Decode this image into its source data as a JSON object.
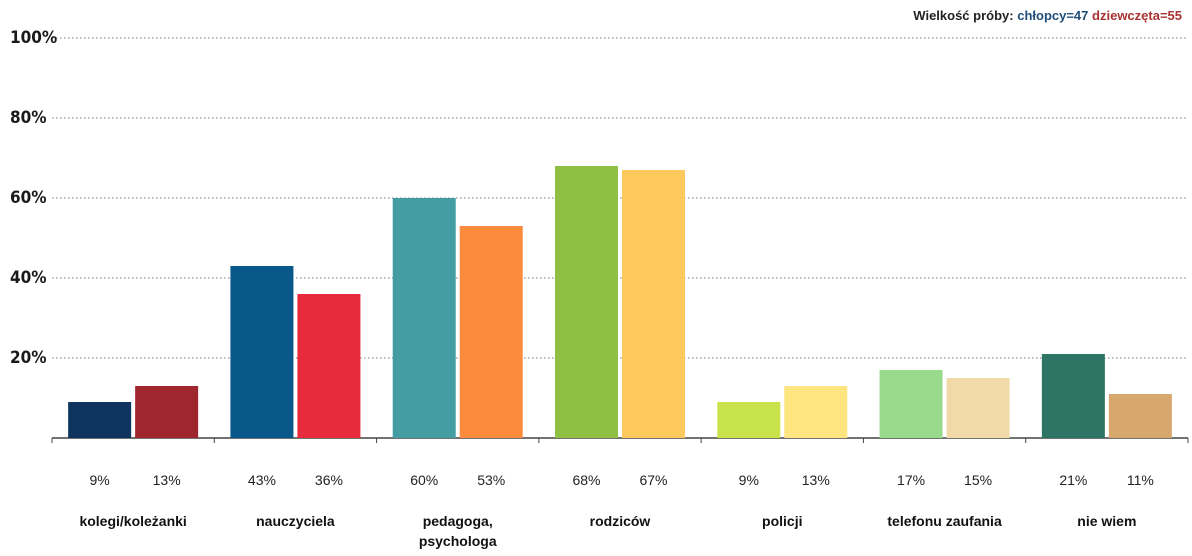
{
  "sample_size": {
    "label": "Wielkość próby:",
    "boys": "chłopcy=47",
    "girls": "dziewczęta=55"
  },
  "chart_data": {
    "type": "bar",
    "ylim": [
      0,
      100
    ],
    "y_ticks": [
      "20%",
      "40%",
      "60%",
      "80%",
      "100%"
    ],
    "grid": true,
    "categories": [
      [
        "kolegi/koleżanki"
      ],
      [
        "nauczyciela"
      ],
      [
        "pedagoga,",
        "psychologa"
      ],
      [
        "rodziców"
      ],
      [
        "policji"
      ],
      [
        "telefonu zaufania"
      ],
      [
        "nie wiem"
      ]
    ],
    "series": [
      {
        "values": [
          9,
          43,
          60,
          68,
          9,
          17,
          21
        ],
        "labels": [
          "9%",
          "43%",
          "60%",
          "68%",
          "9%",
          "17%",
          "21%"
        ],
        "colors": [
          "#0f3460",
          "#08588a",
          "#449da3",
          "#8fc044",
          "#c8e44a",
          "#98d98c",
          "#2f7565"
        ]
      },
      {
        "values": [
          13,
          36,
          53,
          67,
          13,
          15,
          11
        ],
        "labels": [
          "13%",
          "36%",
          "53%",
          "67%",
          "13%",
          "15%",
          "11%"
        ],
        "colors": [
          "#a0262d",
          "#e72a3c",
          "#fd8b3d",
          "#fec95c",
          "#fee580",
          "#f2d9a8",
          "#d7a76e"
        ]
      }
    ]
  }
}
